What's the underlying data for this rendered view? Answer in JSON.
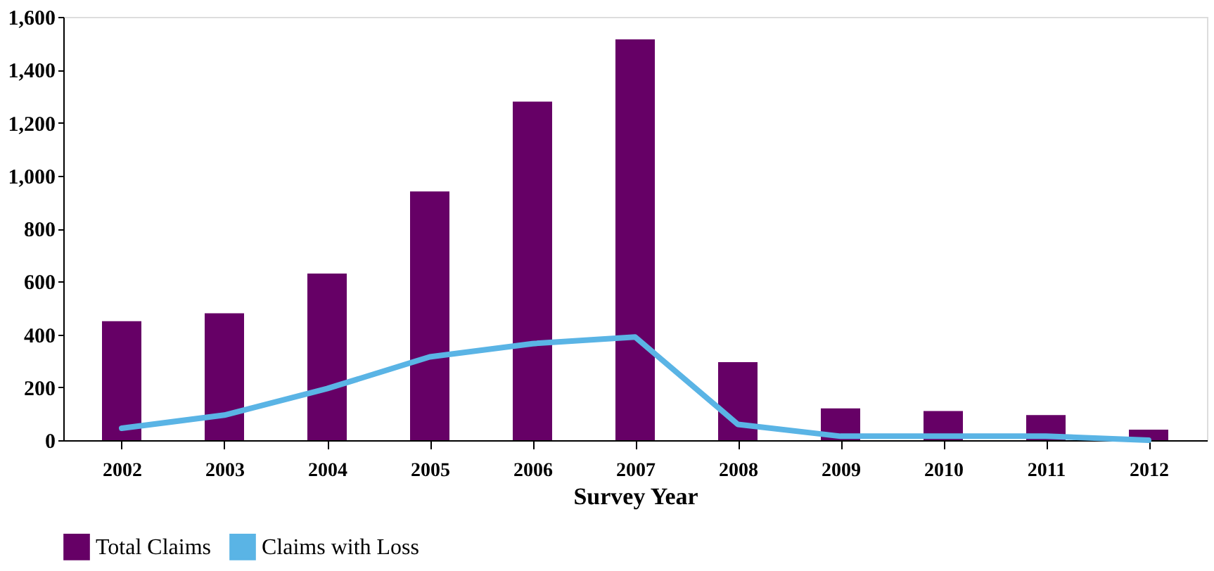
{
  "chart_data": {
    "type": "bar",
    "xlabel": "Survey Year",
    "categories": [
      "2002",
      "2003",
      "2004",
      "2005",
      "2006",
      "2007",
      "2008",
      "2009",
      "2010",
      "2011",
      "2012"
    ],
    "series": [
      {
        "name": "Total Claims",
        "color": "#660066",
        "values": [
          450,
          480,
          630,
          940,
          1280,
          1515,
          295,
          120,
          110,
          95,
          40
        ]
      },
      {
        "name": "Claims with Loss",
        "type": "line",
        "color": "#5ab4e5",
        "values": [
          45,
          95,
          195,
          315,
          365,
          390,
          60,
          15,
          15,
          15,
          0
        ]
      }
    ],
    "ylim": [
      0,
      1600
    ],
    "yticks": [
      {
        "value": 0,
        "label": "0"
      },
      {
        "value": 200,
        "label": "200"
      },
      {
        "value": 400,
        "label": "400"
      },
      {
        "value": 600,
        "label": "600"
      },
      {
        "value": 800,
        "label": "800"
      },
      {
        "value": 1000,
        "label": "1,000"
      },
      {
        "value": 1200,
        "label": "1,200"
      },
      {
        "value": 1400,
        "label": "1,400"
      },
      {
        "value": 1600,
        "label": "1,600"
      }
    ],
    "grid": false,
    "legend": "bottom",
    "marker": "none",
    "line_style": "solid"
  }
}
